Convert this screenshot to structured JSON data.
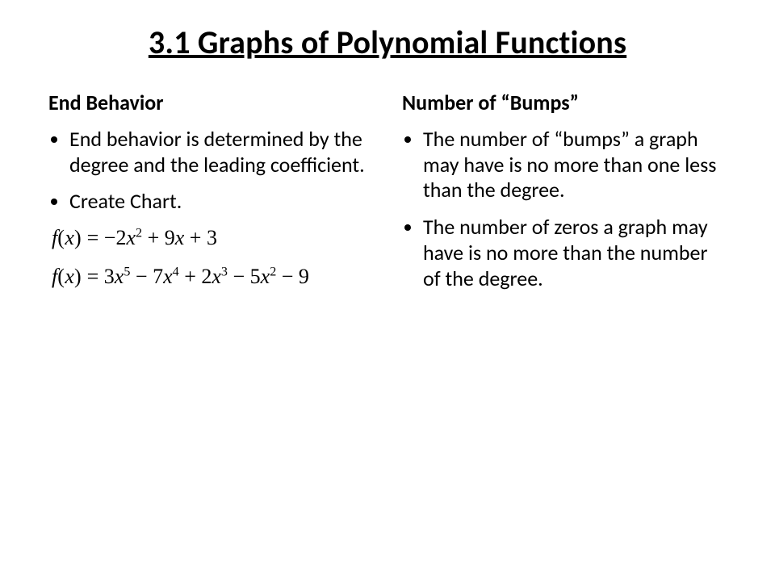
{
  "title": "3.1 Graphs of Polynomial Functions",
  "left": {
    "heading": "End Behavior",
    "bullets": [
      "End behavior is determined by the degree and the leading coefficient.",
      "Create Chart."
    ],
    "equations": {
      "eq1": {
        "prefix": "f",
        "open": "(",
        "var": "x",
        "close": ")",
        "eq": " = ",
        "c0": "−2",
        "x0": "x",
        "p0": "2",
        "s1": " + ",
        "c1": "9",
        "x1": "x",
        "s2": " + ",
        "c2": "3"
      },
      "eq2": {
        "prefix": "f",
        "open": "(",
        "var": "x",
        "close": ")",
        "eq": " = ",
        "c0": "3",
        "x0": "x",
        "p0": "5",
        "s1": " − ",
        "c1": "7",
        "x1": "x",
        "p1": "4",
        "s2": " + ",
        "c2": "2",
        "x2": "x",
        "p2": "3",
        "s3": " − ",
        "c3": "5",
        "x3": "x",
        "p3": "2",
        "s4": " − ",
        "c4": "9"
      }
    }
  },
  "right": {
    "heading": "Number of “Bumps”",
    "bullets": [
      "The number of “bumps” a graph may have is no more than one less than the degree.",
      "The number of zeros a graph may have is no more than the number of the degree."
    ]
  },
  "style": {
    "background": "#ffffff",
    "text_color": "#000000",
    "title_fontsize": 40,
    "subhead_fontsize": 26,
    "body_fontsize": 26,
    "equation_fontfamily": "Times New Roman",
    "body_fontfamily": "Calibri"
  }
}
